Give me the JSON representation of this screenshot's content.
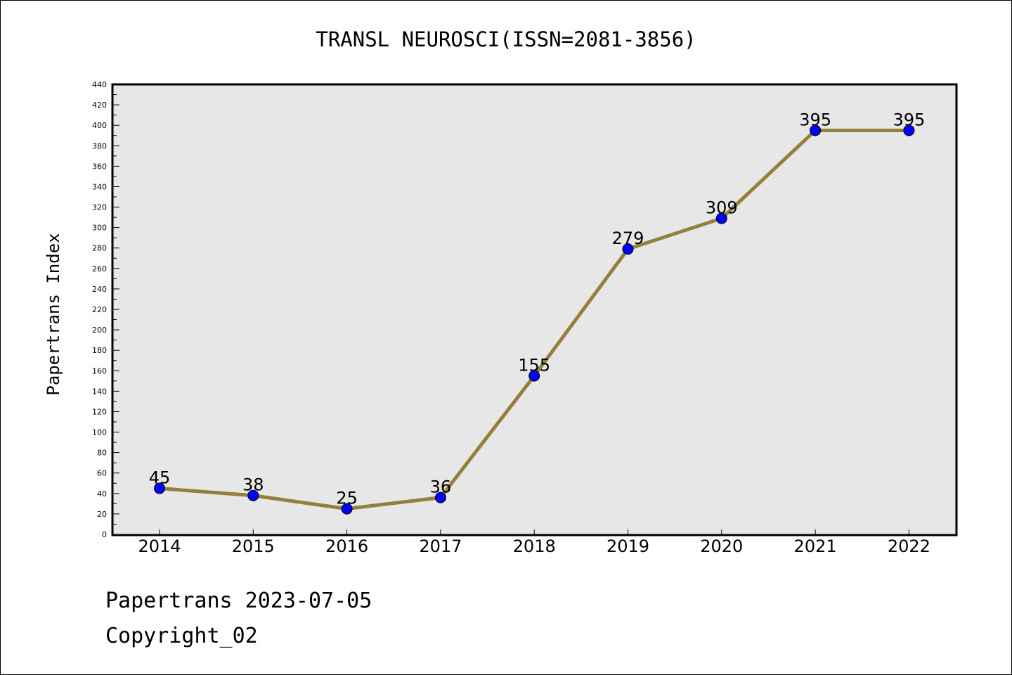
{
  "chart_data": {
    "type": "line",
    "title": "TRANSL NEUROSCI(ISSN=2081-3856)",
    "xlabel": "",
    "ylabel": "Papertrans Index",
    "categories": [
      "2014",
      "2015",
      "2016",
      "2017",
      "2018",
      "2019",
      "2020",
      "2021",
      "2022"
    ],
    "series": [
      {
        "values": [
          45,
          38,
          25,
          36,
          155,
          279,
          309,
          395,
          395
        ]
      }
    ],
    "data_labels": [
      "45",
      "38",
      "25",
      "36",
      "155",
      "279",
      "309",
      "395",
      "395"
    ],
    "ylim": [
      0,
      440
    ],
    "yticks": [
      "0",
      "20",
      "40",
      "60",
      "80",
      "100",
      "120",
      "140",
      "160",
      "180",
      "200",
      "220",
      "240",
      "260",
      "280",
      "300",
      "320",
      "340",
      "360",
      "380",
      "400",
      "420",
      "440"
    ],
    "grid": false,
    "colors": {
      "line": "#94803a",
      "marker": "#0000ff",
      "plot_background": "#e7e7e7"
    }
  },
  "footer": {
    "line1": "Papertrans 2023-07-05",
    "line2": "Copyright_02"
  }
}
